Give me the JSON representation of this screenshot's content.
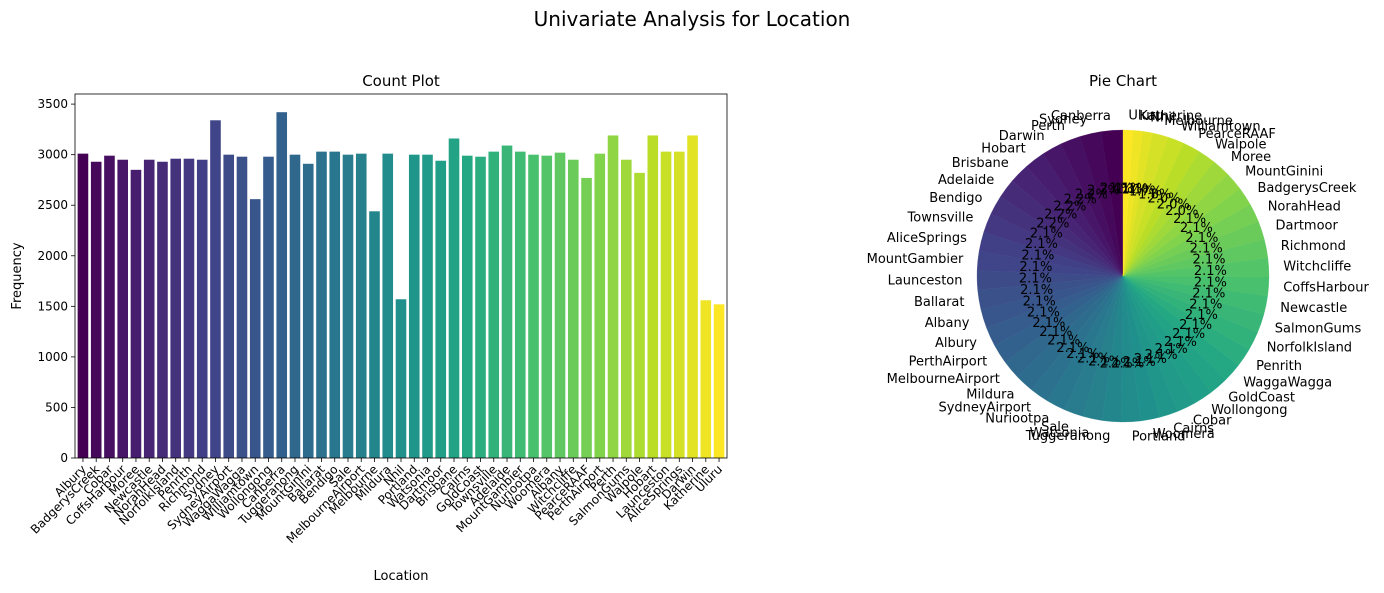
{
  "figure": {
    "title": "Univariate Analysis for Location"
  },
  "chart_data": [
    {
      "type": "bar",
      "title": "Count Plot",
      "xlabel": "Location",
      "ylabel": "Frequency",
      "ylim": [
        0,
        3600
      ],
      "yticks": [
        0,
        500,
        1000,
        1500,
        2000,
        2500,
        3000,
        3500
      ],
      "grid": false,
      "colormap": "viridis",
      "categories": [
        "Albury",
        "BadgerysCreek",
        "Cobar",
        "CoffsHarbour",
        "Moree",
        "Newcastle",
        "NorahHead",
        "NorfolkIsland",
        "Penrith",
        "Richmond",
        "Sydney",
        "SydneyAirport",
        "WaggaWagga",
        "Williamtown",
        "Wollongong",
        "Canberra",
        "Tuggeranong",
        "MountGinini",
        "Ballarat",
        "Bendigo",
        "Sale",
        "MelbourneAirport",
        "Melbourne",
        "Mildura",
        "Nhil",
        "Portland",
        "Watsonia",
        "Dartmoor",
        "Brisbane",
        "Cairns",
        "GoldCoast",
        "Townsville",
        "Adelaide",
        "MountGambier",
        "Nuriootpa",
        "Woomera",
        "Albany",
        "Witchcliffe",
        "PearceRAAF",
        "PerthAirport",
        "Perth",
        "SalmonGums",
        "Walpole",
        "Hobart",
        "Launceston",
        "AliceSprings",
        "Darwin",
        "Katherine",
        "Uluru"
      ],
      "values": [
        3010,
        2930,
        2990,
        2950,
        2850,
        2950,
        2930,
        2960,
        2960,
        2950,
        3340,
        3000,
        2980,
        2560,
        2980,
        3420,
        3000,
        2910,
        3030,
        3030,
        3000,
        3010,
        2440,
        3010,
        1570,
        3000,
        3000,
        2940,
        3160,
        2990,
        2980,
        3030,
        3090,
        3030,
        3000,
        2990,
        3020,
        2950,
        2770,
        3010,
        3190,
        2950,
        2820,
        3190,
        3030,
        3030,
        3190,
        1560,
        1520
      ]
    },
    {
      "type": "pie",
      "title": "Pie Chart",
      "colormap": "viridis",
      "labels": [
        "Canberra",
        "Sydney",
        "Perth",
        "Darwin",
        "Hobart",
        "Brisbane",
        "Adelaide",
        "Bendigo",
        "Townsville",
        "AliceSprings",
        "MountGambier",
        "Launceston",
        "Ballarat",
        "Albany",
        "Albury",
        "PerthAirport",
        "MelbourneAirport",
        "Mildura",
        "SydneyAirport",
        "Nuriootpa",
        "Sale",
        "Watsonia",
        "Tuggeranong",
        "Portland",
        "Woomera",
        "Cairns",
        "Cobar",
        "Wollongong",
        "GoldCoast",
        "WaggaWagga",
        "Penrith",
        "NorfolkIsland",
        "SalmonGums",
        "Newcastle",
        "CoffsHarbour",
        "Witchcliffe",
        "Richmond",
        "Dartmoor",
        "NorahHead",
        "BadgerysCreek",
        "MountGinini",
        "Moree",
        "Walpole",
        "PearceRAAF",
        "Williamtown",
        "Melbourne",
        "Nhil",
        "Katherine",
        "Uluru"
      ],
      "values": [
        3420,
        3340,
        3190,
        3190,
        3190,
        3160,
        3090,
        3030,
        3030,
        3030,
        3030,
        3030,
        3030,
        3020,
        3010,
        3010,
        3010,
        3010,
        3000,
        3000,
        3000,
        3000,
        3000,
        3000,
        2990,
        2990,
        2990,
        2980,
        2980,
        2980,
        2960,
        2960,
        2950,
        2950,
        2950,
        2950,
        2950,
        2940,
        2930,
        2930,
        2910,
        2850,
        2820,
        2770,
        2560,
        2440,
        1570,
        1560,
        1520
      ],
      "percent_labels": [
        "2.4%",
        "2.3%",
        "2.2%",
        "2.2%",
        "2.2%",
        "2.2%",
        "2.2%",
        "2.1%",
        "2.1%",
        "2.1%",
        "2.1%",
        "2.1%",
        "2.1%",
        "2.1%",
        "2.1%",
        "2.1%",
        "2.1%",
        "2.1%",
        "2.1%",
        "2.1%",
        "2.1%",
        "2.1%",
        "2.1%",
        "2.1%",
        "2.1%",
        "2.1%",
        "2.1%",
        "2.1%",
        "2.1%",
        "2.1%",
        "2.1%",
        "2.1%",
        "2.1%",
        "2.1%",
        "2.1%",
        "2.1%",
        "2.1%",
        "2.1%",
        "2.1%",
        "2.1%",
        "2.1%",
        "2.0%",
        "2.0%",
        "2.0%",
        "1.8%",
        "1.7%",
        "1.1%",
        "1.1%",
        "1.1%"
      ]
    }
  ]
}
